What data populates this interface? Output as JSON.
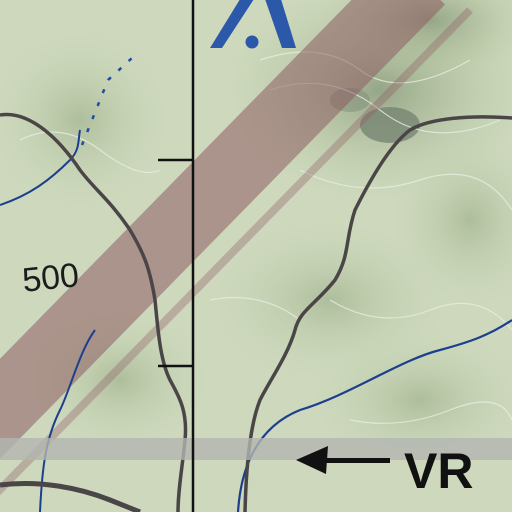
{
  "map": {
    "elevation_label": "500",
    "route_label": "VR",
    "colors": {
      "terrain_light": "#d3ddc1",
      "terrain_mid": "#b8c9a2",
      "terrain_dark": "#93a889",
      "ridge_shadow": "#6f7e6c",
      "corridor_band": "#8e5d63",
      "road": "#4a4648",
      "stream": "#1c3f8e",
      "dashed_stream": "#1c4fa0",
      "route_band": "#b3b5b0",
      "meridian": "#111111",
      "airport_symbol": "#2b58a8",
      "text": "#1c1c1c"
    },
    "icons": {
      "airport": "airport-symbol-icon",
      "route_arrow": "left-arrow-icon"
    }
  }
}
